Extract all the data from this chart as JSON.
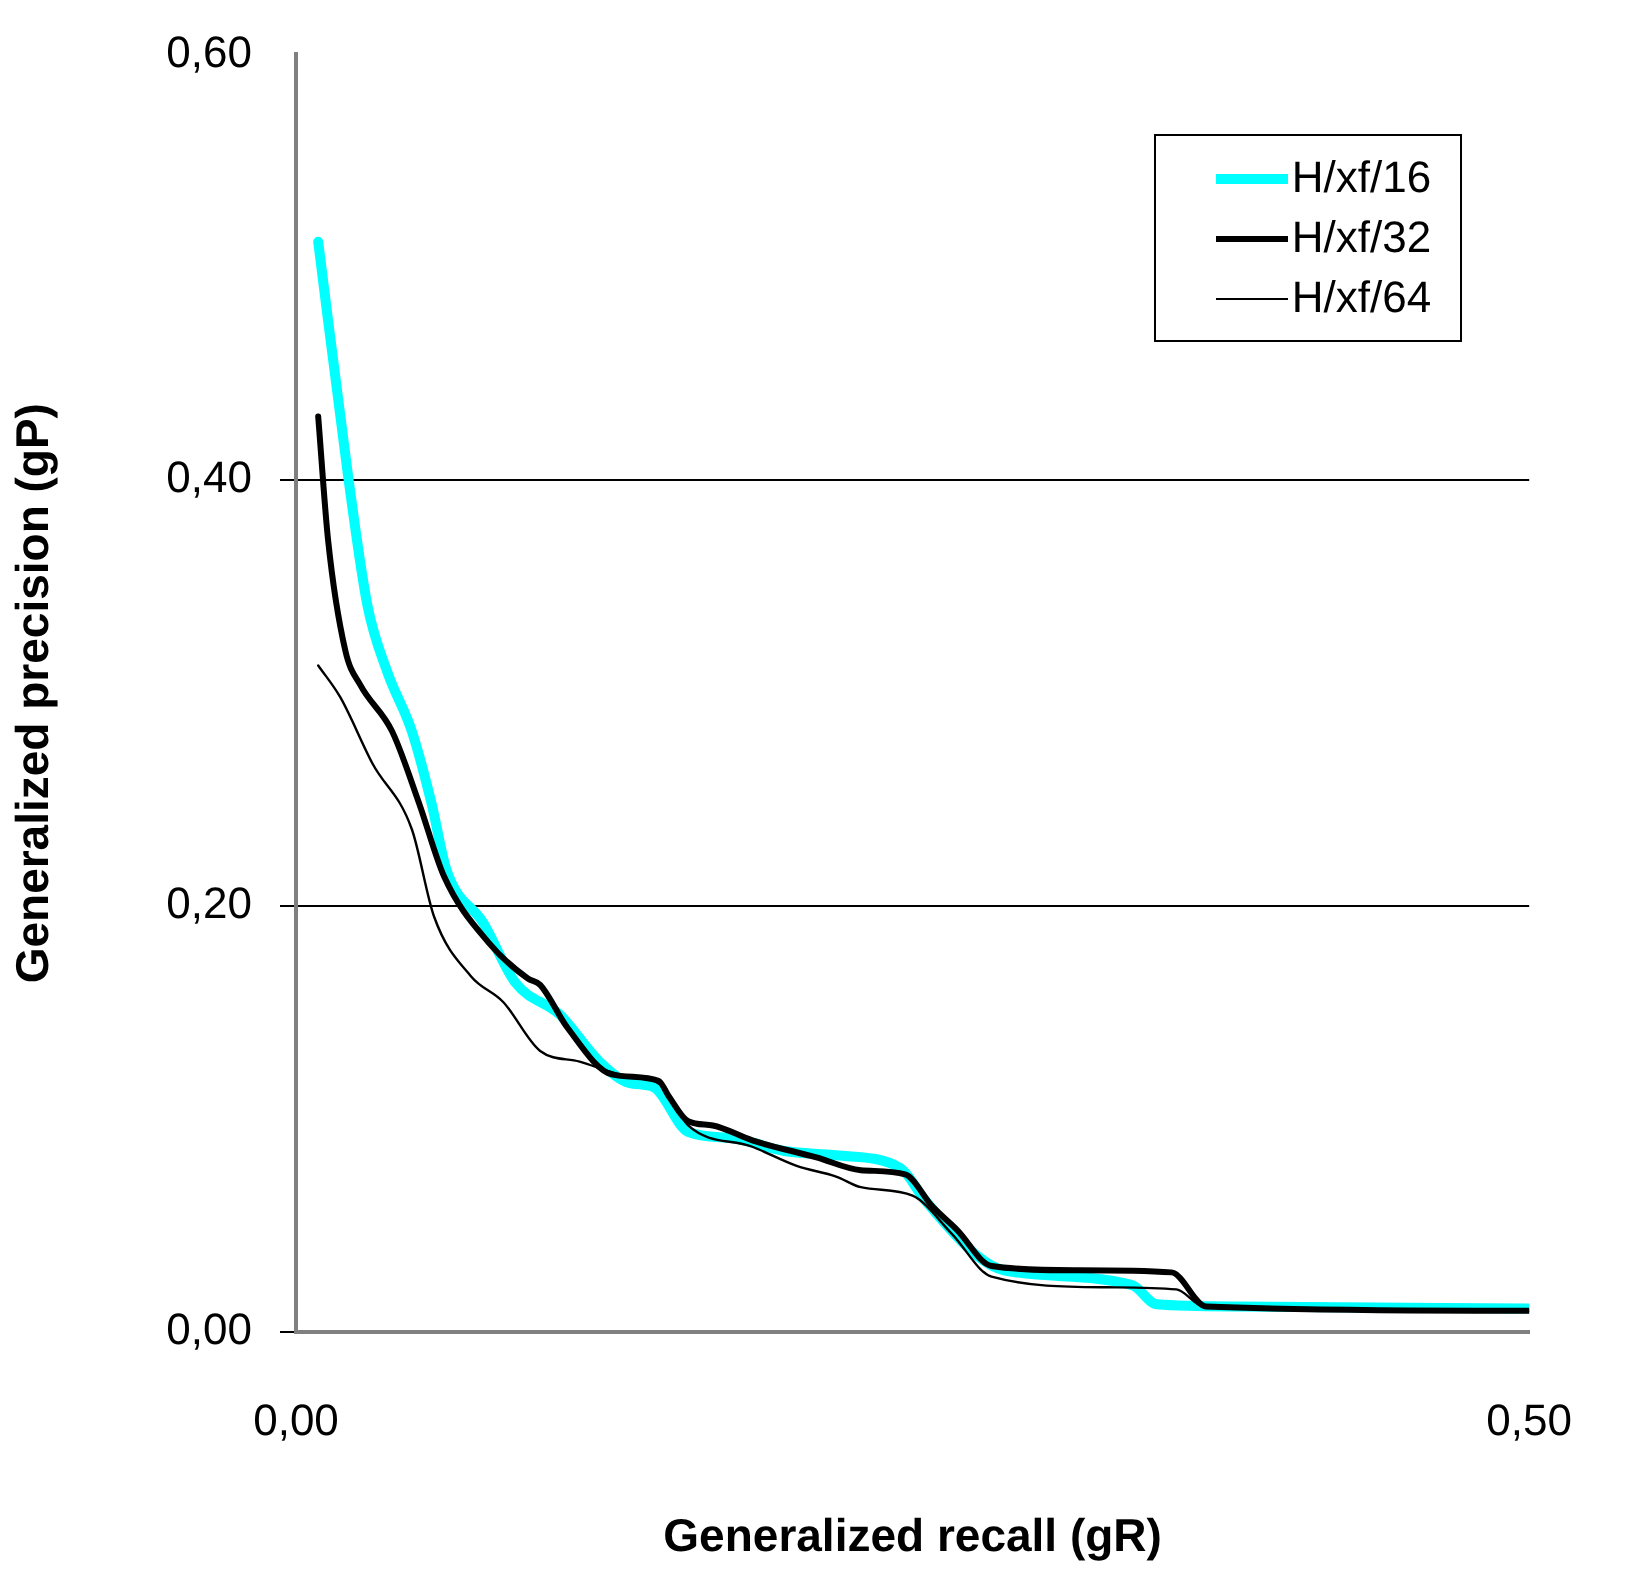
{
  "chart_data": {
    "type": "line",
    "xlabel": "Generalized recall (gR)",
    "ylabel": "Generalized precision (gP)",
    "xlim": [
      0,
      0.5
    ],
    "xticks": [
      {
        "value": 0,
        "label": "0,00"
      },
      {
        "value": 0.5,
        "label": "0,50"
      }
    ],
    "ylim": [
      0,
      0.6
    ],
    "yticks": [
      {
        "value": 0,
        "label": "0,00"
      },
      {
        "value": 0.2,
        "label": "0,20"
      },
      {
        "value": 0.4,
        "label": "0,40"
      },
      {
        "value": 0.6,
        "label": "0,60"
      }
    ],
    "grid": "y",
    "legend": "top right",
    "marker": "none",
    "line_style": "solid",
    "series": [
      {
        "name": "H/xf/16",
        "color": "#00ffff",
        "x": [
          0.009,
          0.021,
          0.029,
          0.037,
          0.047,
          0.055,
          0.061,
          0.076,
          0.089,
          0.107,
          0.123,
          0.135,
          0.145,
          0.159,
          0.177,
          0.198,
          0.219,
          0.245,
          0.255,
          0.276,
          0.287,
          0.339,
          0.349,
          0.381,
          0.5
        ],
        "values": [
          0.512,
          0.403,
          0.341,
          0.31,
          0.282,
          0.248,
          0.217,
          0.192,
          0.164,
          0.149,
          0.127,
          0.117,
          0.115,
          0.094,
          0.091,
          0.085,
          0.083,
          0.077,
          0.062,
          0.036,
          0.029,
          0.022,
          0.013,
          0.012,
          0.011
        ]
      },
      {
        "name": "H/xf/32",
        "color": "#000000",
        "x": [
          0.009,
          0.013,
          0.02,
          0.026,
          0.039,
          0.05,
          0.06,
          0.078,
          0.094,
          0.099,
          0.11,
          0.128,
          0.147,
          0.151,
          0.159,
          0.169,
          0.185,
          0.211,
          0.229,
          0.247,
          0.258,
          0.268,
          0.282,
          0.316,
          0.355,
          0.369,
          0.5
        ],
        "values": [
          0.43,
          0.372,
          0.32,
          0.304,
          0.282,
          0.248,
          0.214,
          0.183,
          0.166,
          0.163,
          0.143,
          0.121,
          0.118,
          0.111,
          0.099,
          0.097,
          0.09,
          0.082,
          0.076,
          0.074,
          0.059,
          0.048,
          0.031,
          0.029,
          0.028,
          0.012,
          0.01
        ]
      },
      {
        "name": "H/xf/64",
        "color": "#000000",
        "x": [
          0.009,
          0.018,
          0.031,
          0.047,
          0.056,
          0.071,
          0.084,
          0.099,
          0.115,
          0.131,
          0.148,
          0.159,
          0.185,
          0.203,
          0.219,
          0.229,
          0.25,
          0.266,
          0.282,
          0.329,
          0.357,
          0.368,
          0.5
        ],
        "values": [
          0.313,
          0.298,
          0.267,
          0.236,
          0.195,
          0.167,
          0.155,
          0.132,
          0.127,
          0.121,
          0.116,
          0.097,
          0.087,
          0.078,
          0.073,
          0.068,
          0.064,
          0.046,
          0.026,
          0.021,
          0.02,
          0.012,
          0.01
        ]
      }
    ]
  }
}
